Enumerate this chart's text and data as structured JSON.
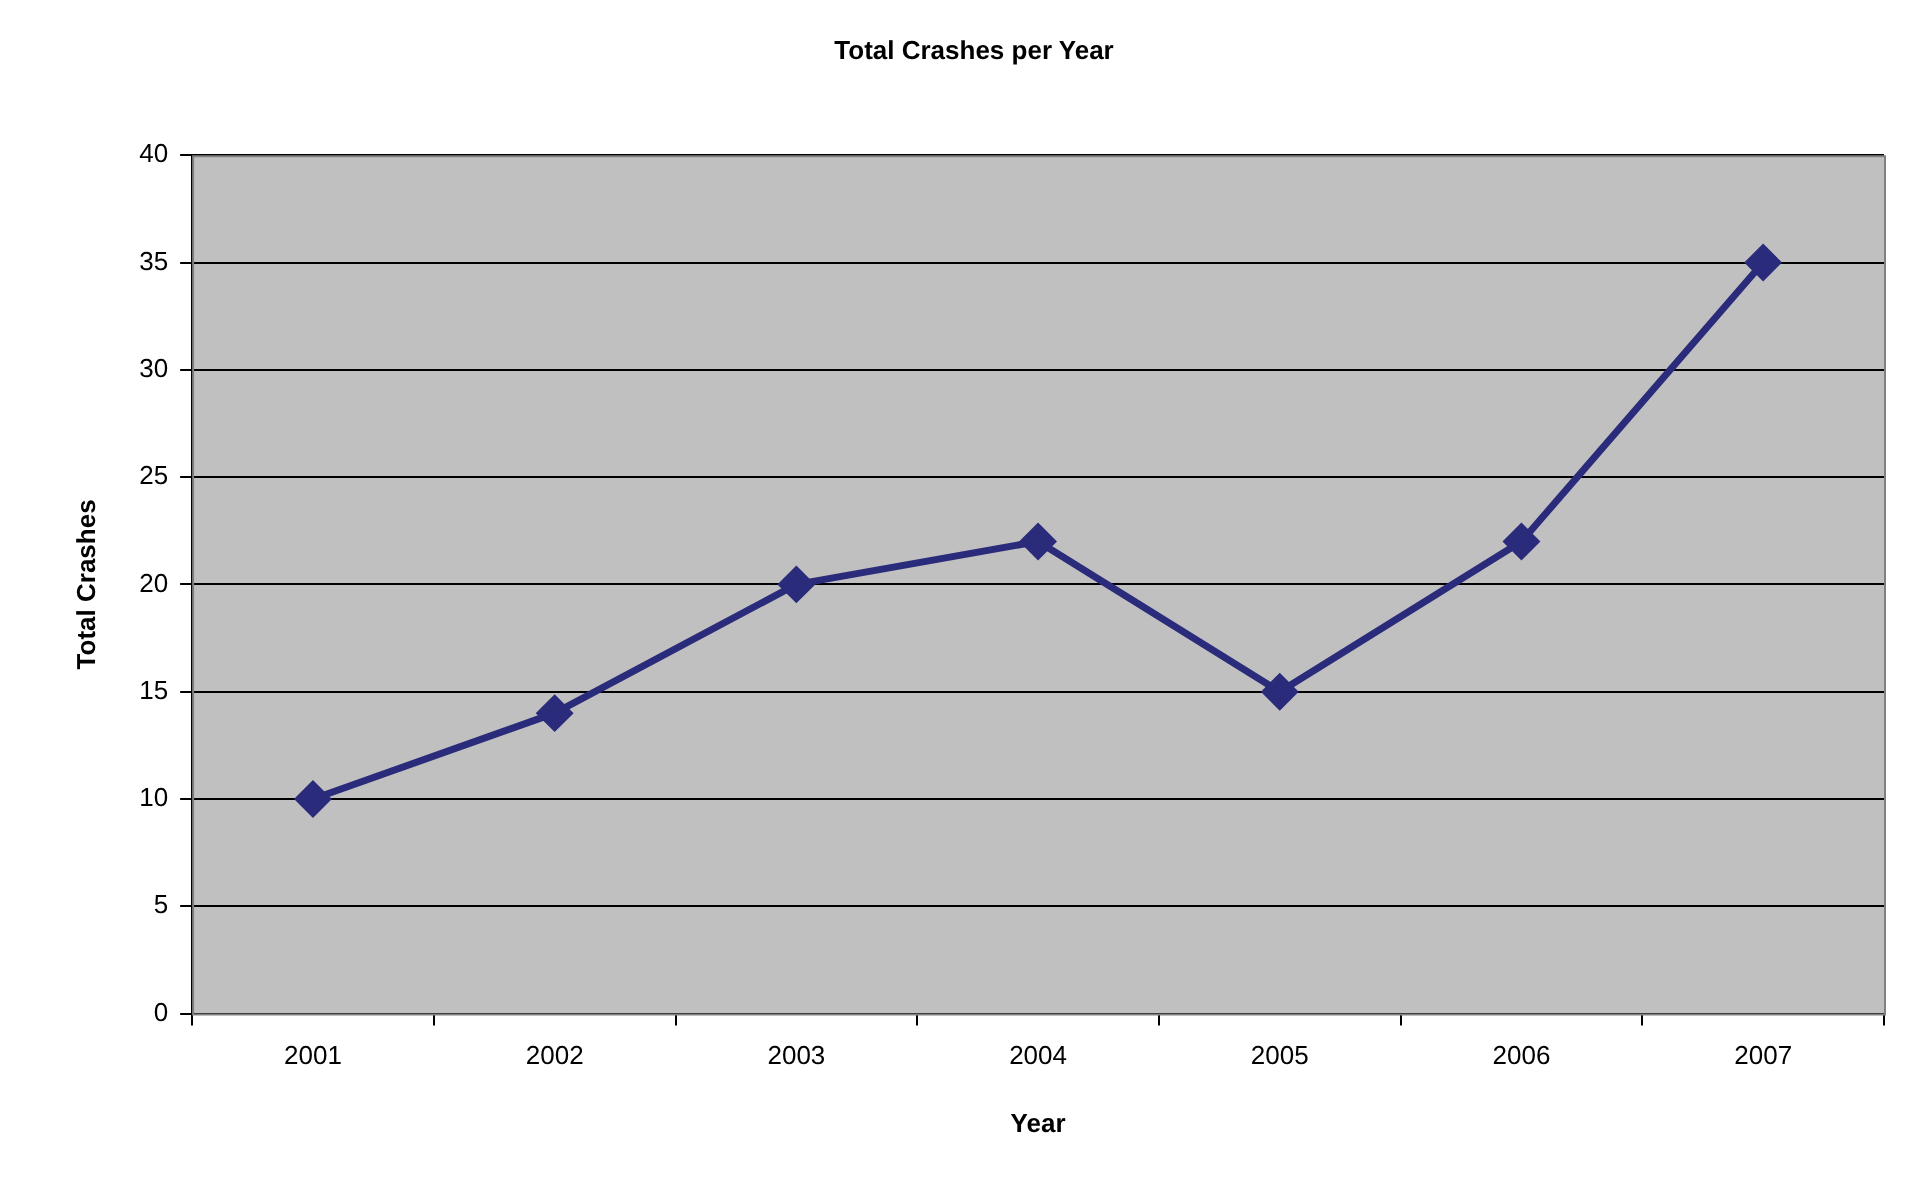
{
  "chart_data": {
    "type": "line",
    "title": "Total Crashes per Year",
    "xlabel": "Year",
    "ylabel": "Total Crashes",
    "categories": [
      "2001",
      "2002",
      "2003",
      "2004",
      "2005",
      "2006",
      "2007"
    ],
    "series": [
      {
        "color": "#2b2b7c",
        "values": [
          10,
          14,
          20,
          22,
          15,
          22,
          35
        ]
      }
    ],
    "ylim": [
      0,
      40
    ],
    "yticks": [
      0,
      5,
      10,
      15,
      20,
      25,
      30,
      35,
      40
    ],
    "grid": "y",
    "legend": false,
    "marker": "diamond",
    "line_style": "solid"
  }
}
